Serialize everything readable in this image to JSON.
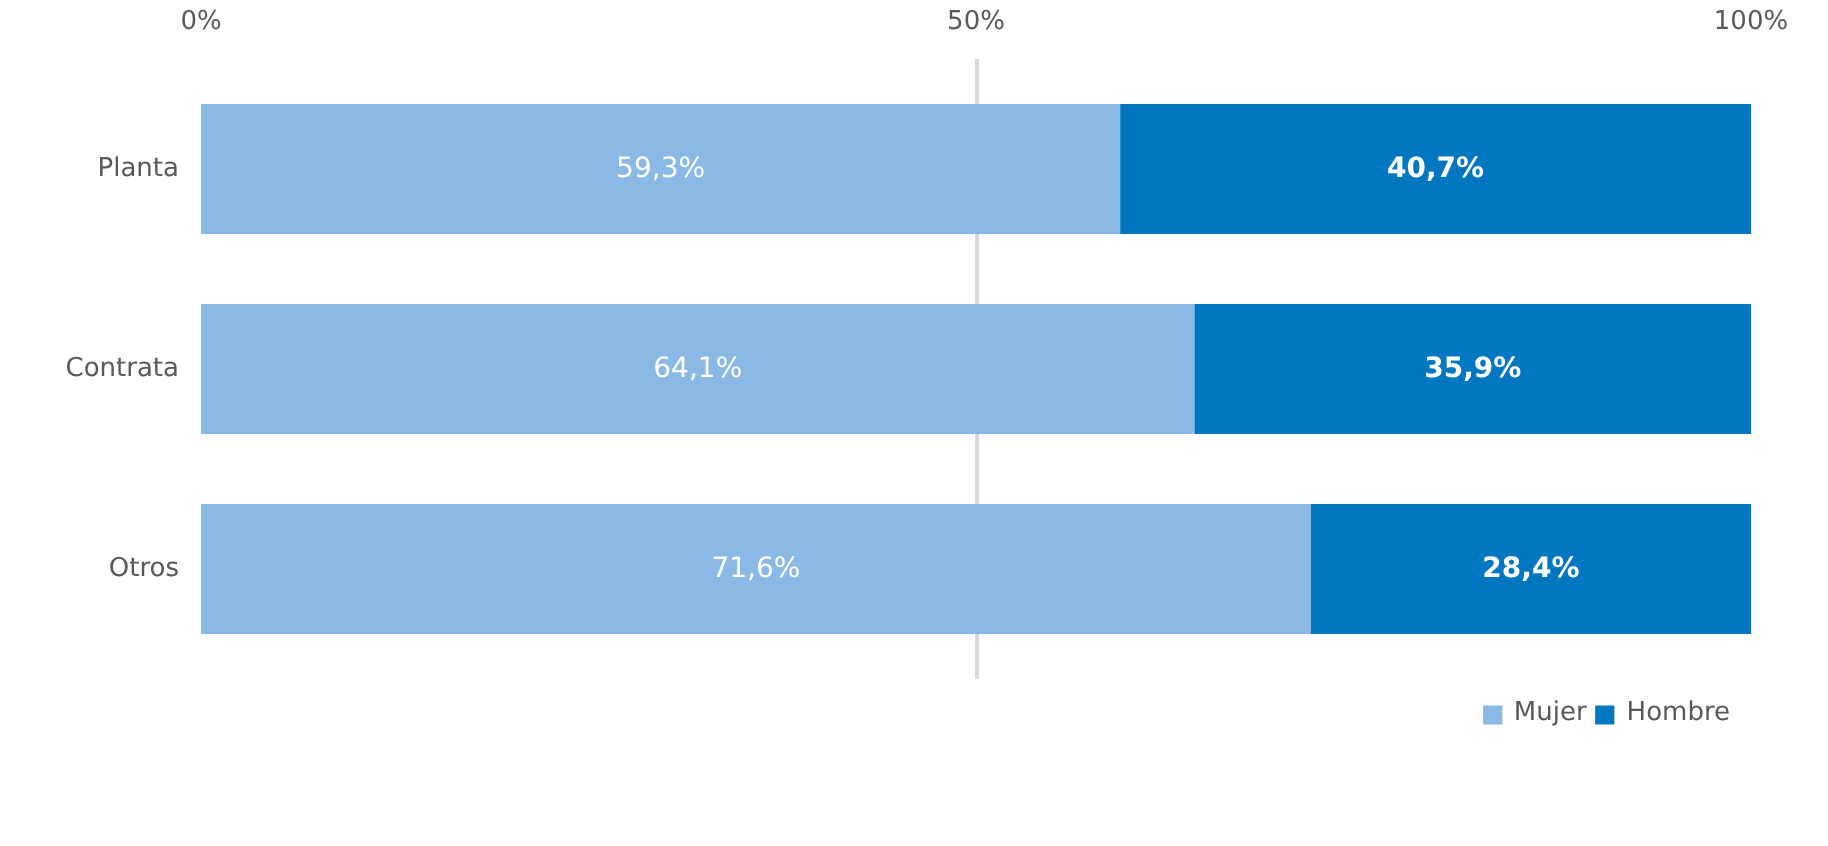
{
  "chart_data": {
    "type": "bar",
    "orientation": "horizontal",
    "stacked": true,
    "categories": [
      "Planta",
      "Contrata",
      "Otros"
    ],
    "series": [
      {
        "name": "Mujer",
        "color": "#8ab9e5",
        "values": [
          59.3,
          64.1,
          71.6
        ],
        "value_labels": [
          "59,3%",
          "64,1%",
          "71,6%"
        ]
      },
      {
        "name": "Hombre",
        "color": "#0077c0",
        "values": [
          40.7,
          35.9,
          28.4
        ],
        "value_labels": [
          "40,7%",
          "35,9%",
          "28,4%"
        ]
      }
    ],
    "xlim": [
      0,
      100
    ],
    "xticks": [
      {
        "value": 0,
        "label": "0%"
      },
      {
        "value": 50,
        "label": "50%"
      },
      {
        "value": 100,
        "label": "100%"
      }
    ],
    "grid": "x",
    "legend": "bottom"
  }
}
